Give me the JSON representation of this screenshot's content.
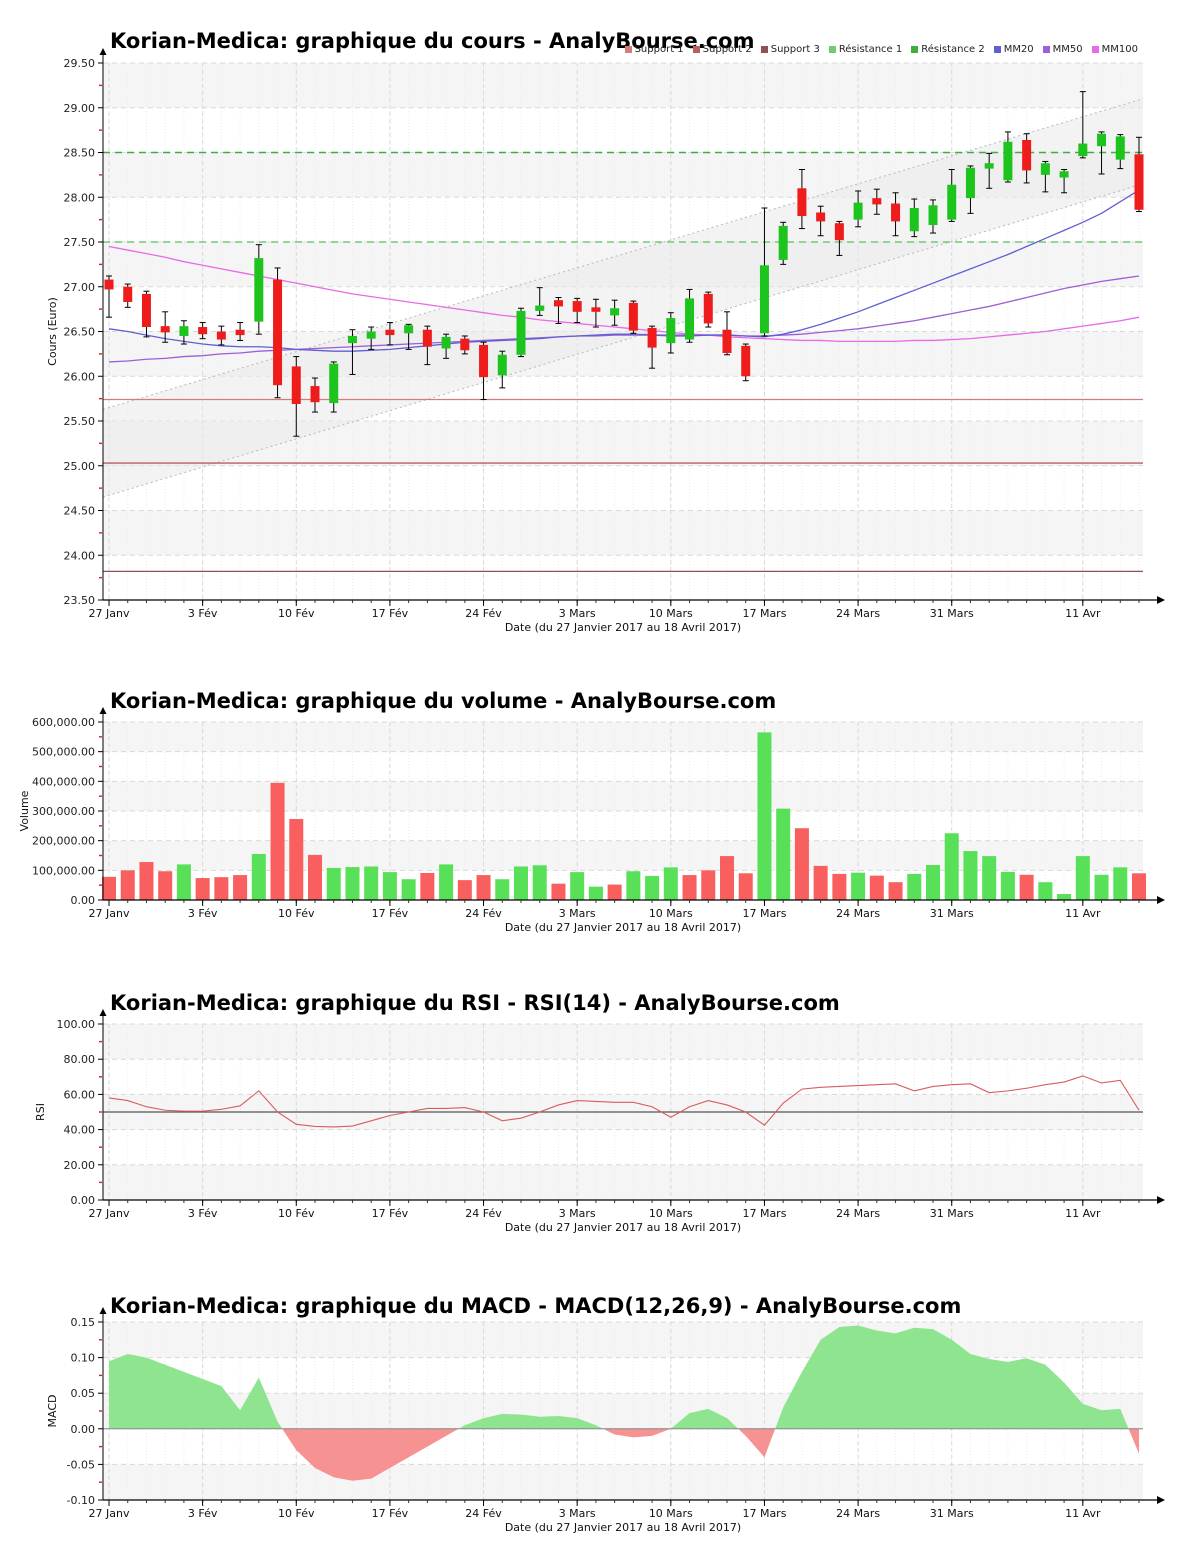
{
  "site": "AnalyBourse.com",
  "x_axis": {
    "title": "Date (du 27 Janvier 2017 au 18 Avril 2017)",
    "week_ticks": [
      {
        "i": 0,
        "label": "27 Janv"
      },
      {
        "i": 5,
        "label": "3 Fév"
      },
      {
        "i": 10,
        "label": "10 Fév"
      },
      {
        "i": 15,
        "label": "17 Fév"
      },
      {
        "i": 20,
        "label": "24 Fév"
      },
      {
        "i": 25,
        "label": "3 Mars"
      },
      {
        "i": 30,
        "label": "10 Mars"
      },
      {
        "i": 35,
        "label": "17 Mars"
      },
      {
        "i": 40,
        "label": "24 Mars"
      },
      {
        "i": 45,
        "label": "31 Mars"
      },
      {
        "i": 52,
        "label": "11 Avr"
      }
    ]
  },
  "dates": [
    "27/01",
    "30/01",
    "31/01",
    "01/02",
    "02/02",
    "03/02",
    "06/02",
    "07/02",
    "08/02",
    "09/02",
    "10/02",
    "13/02",
    "14/02",
    "15/02",
    "16/02",
    "17/02",
    "20/02",
    "21/02",
    "22/02",
    "23/02",
    "24/02",
    "27/02",
    "28/02",
    "01/03",
    "02/03",
    "03/03",
    "06/03",
    "07/03",
    "08/03",
    "09/03",
    "10/03",
    "13/03",
    "14/03",
    "15/03",
    "16/03",
    "17/03",
    "20/03",
    "21/03",
    "22/03",
    "23/03",
    "24/03",
    "27/03",
    "28/03",
    "29/03",
    "30/03",
    "31/03",
    "03/04",
    "04/04",
    "05/04",
    "06/04",
    "07/04",
    "10/04",
    "11/04",
    "12/04",
    "13/04",
    "18/04"
  ],
  "colors": {
    "candle_up": "#1ec41e",
    "candle_down": "#ef1c1c",
    "wick": "#000000",
    "volume_up": "#58e058",
    "volume_down": "#f95f5f",
    "rsi_line": "#d95c5c",
    "macd_pos": "#8fe48f",
    "macd_neg": "#f79292",
    "mm20": "#5f5fd3",
    "mm50": "#9d5fd3",
    "mm100": "#e86ae8",
    "support1": "#d47c7c",
    "support2": "#b95f5f",
    "support3": "#8f5252",
    "resistance1": "#74c974",
    "resistance2": "#3fae3f",
    "band": "#f5f5f5",
    "grid_major": "#d9d9d9",
    "grid_day": "#ececec",
    "minor_tick": "#cc2222",
    "channel_fill": "#e9e9e9",
    "channel_line": "#b8b8b8",
    "baseline": "#555555"
  },
  "chart_data": [
    {
      "type": "candlestick",
      "title": "Korian-Medica: graphique du cours - AnalyBourse.com",
      "xlabel": "Date (du 27 Janvier 2017 au 18 Avril 2017)",
      "ylabel": "Cours (Euro)",
      "ylim": [
        23.5,
        29.5
      ],
      "ytick_step": 0.5,
      "legend": [
        {
          "label": "Support 1",
          "color": "#d47c7c"
        },
        {
          "label": "Support 2",
          "color": "#b95f5f"
        },
        {
          "label": "Support 3",
          "color": "#8f5252"
        },
        {
          "label": "Résistance 1",
          "color": "#74c974"
        },
        {
          "label": "Résistance 2",
          "color": "#3fae3f"
        },
        {
          "label": "MM20",
          "color": "#5f5fd3"
        },
        {
          "label": "MM50",
          "color": "#9d5fd3"
        },
        {
          "label": "MM100",
          "color": "#e86ae8"
        }
      ],
      "open": [
        27.08,
        27.0,
        26.92,
        26.56,
        26.45,
        26.55,
        26.5,
        26.52,
        26.61,
        27.08,
        26.11,
        25.89,
        25.7,
        26.37,
        26.42,
        26.52,
        26.48,
        26.52,
        26.31,
        26.42,
        26.35,
        26.01,
        26.24,
        26.73,
        26.85,
        26.84,
        26.77,
        26.68,
        26.82,
        26.54,
        26.37,
        26.41,
        26.92,
        26.52,
        26.34,
        26.48,
        27.3,
        28.1,
        27.83,
        27.71,
        27.75,
        27.99,
        27.93,
        27.62,
        27.69,
        27.75,
        27.99,
        28.32,
        28.19,
        28.64,
        28.25,
        28.22,
        28.46,
        28.57,
        28.42,
        28.48
      ],
      "high": [
        27.12,
        27.03,
        26.95,
        26.72,
        26.62,
        26.6,
        26.56,
        26.6,
        27.47,
        27.21,
        26.22,
        25.98,
        26.16,
        26.52,
        26.55,
        26.6,
        26.58,
        26.56,
        26.47,
        26.45,
        26.38,
        26.28,
        26.76,
        26.99,
        26.88,
        26.87,
        26.86,
        26.85,
        26.84,
        26.56,
        26.71,
        26.97,
        26.94,
        26.72,
        26.36,
        27.88,
        27.72,
        28.31,
        27.9,
        27.73,
        28.07,
        28.09,
        28.05,
        27.98,
        27.97,
        28.31,
        28.35,
        28.49,
        28.73,
        28.71,
        28.4,
        28.31,
        29.18,
        28.73,
        28.7,
        28.67
      ],
      "low": [
        26.66,
        26.77,
        26.44,
        26.38,
        26.36,
        26.42,
        26.35,
        26.4,
        26.47,
        25.76,
        25.33,
        25.6,
        25.6,
        26.02,
        26.3,
        26.35,
        26.3,
        26.13,
        26.2,
        26.25,
        25.74,
        25.87,
        26.22,
        26.68,
        26.59,
        26.6,
        26.55,
        26.57,
        26.48,
        26.09,
        26.26,
        26.38,
        26.55,
        26.24,
        25.95,
        26.45,
        27.25,
        27.65,
        27.57,
        27.35,
        27.67,
        27.81,
        27.57,
        27.56,
        27.6,
        27.73,
        27.82,
        28.1,
        28.17,
        28.16,
        28.06,
        28.05,
        28.44,
        28.26,
        28.32,
        27.84
      ],
      "close": [
        26.97,
        26.83,
        26.55,
        26.49,
        26.56,
        26.47,
        26.41,
        26.46,
        27.32,
        25.9,
        25.69,
        25.71,
        26.14,
        26.45,
        26.5,
        26.46,
        26.57,
        26.33,
        26.44,
        26.29,
        25.99,
        26.24,
        26.73,
        26.79,
        26.78,
        26.72,
        26.72,
        26.76,
        26.51,
        26.32,
        26.65,
        26.87,
        26.59,
        26.26,
        26.0,
        27.24,
        27.68,
        27.79,
        27.73,
        27.52,
        27.94,
        27.92,
        27.73,
        27.88,
        27.91,
        28.14,
        28.33,
        28.38,
        28.62,
        28.3,
        28.38,
        28.29,
        28.6,
        28.71,
        28.68,
        27.86
      ],
      "levels": {
        "support1": 25.74,
        "support2": 25.03,
        "support3": 23.82,
        "resistance1": 27.5,
        "resistance2": 28.5
      },
      "channel": {
        "lower_start": 24.65,
        "lower_end": 28.15,
        "upper_start": 25.63,
        "upper_end": 29.1
      },
      "mm20": [
        26.53,
        26.5,
        26.46,
        26.42,
        26.39,
        26.36,
        26.34,
        26.33,
        26.33,
        26.32,
        26.3,
        26.29,
        26.28,
        26.28,
        26.29,
        26.3,
        26.32,
        26.34,
        26.36,
        26.38,
        26.39,
        26.4,
        26.41,
        26.42,
        26.44,
        26.45,
        26.46,
        26.47,
        26.47,
        26.46,
        26.45,
        26.45,
        26.46,
        26.46,
        26.45,
        26.44,
        26.47,
        26.52,
        26.58,
        26.65,
        26.72,
        26.8,
        26.88,
        26.96,
        27.04,
        27.12,
        27.2,
        27.28,
        27.36,
        27.45,
        27.54,
        27.63,
        27.72,
        27.82,
        27.95,
        28.08
      ],
      "mm50": [
        26.16,
        26.17,
        26.19,
        26.2,
        26.22,
        26.23,
        26.25,
        26.26,
        26.28,
        26.29,
        26.3,
        26.31,
        26.32,
        26.33,
        26.34,
        26.35,
        26.36,
        26.37,
        26.38,
        26.39,
        26.4,
        26.41,
        26.42,
        26.43,
        26.44,
        26.45,
        26.45,
        26.46,
        26.46,
        26.46,
        26.46,
        26.46,
        26.46,
        26.46,
        26.45,
        26.45,
        26.46,
        26.47,
        26.49,
        26.51,
        26.53,
        26.56,
        26.59,
        26.62,
        26.66,
        26.7,
        26.74,
        26.78,
        26.83,
        26.88,
        26.93,
        26.98,
        27.02,
        27.06,
        27.09,
        27.12
      ],
      "mm100": [
        27.45,
        27.41,
        27.37,
        27.33,
        27.28,
        27.24,
        27.2,
        27.16,
        27.12,
        27.08,
        27.04,
        27.0,
        26.96,
        26.92,
        26.89,
        26.86,
        26.83,
        26.8,
        26.77,
        26.74,
        26.71,
        26.68,
        26.66,
        26.63,
        26.61,
        26.59,
        26.57,
        26.55,
        26.53,
        26.51,
        26.49,
        26.47,
        26.46,
        26.44,
        26.43,
        26.42,
        26.41,
        26.4,
        26.4,
        26.39,
        26.39,
        26.39,
        26.39,
        26.4,
        26.4,
        26.41,
        26.42,
        26.44,
        26.46,
        26.48,
        26.5,
        26.53,
        26.56,
        26.59,
        26.62,
        26.66
      ]
    },
    {
      "type": "bar",
      "title": "Korian-Medica: graphique du volume - AnalyBourse.com",
      "xlabel": "Date (du 27 Janvier 2017 au 18 Avril 2017)",
      "ylabel": "Volume",
      "ylim": [
        0,
        600000
      ],
      "ytick_step": 100000,
      "values": [
        78000,
        100000,
        128000,
        97000,
        120000,
        74000,
        77000,
        84000,
        155000,
        395000,
        273000,
        152000,
        108000,
        111000,
        113000,
        94000,
        70000,
        91000,
        120000,
        67000,
        84000,
        70000,
        113000,
        117000,
        55000,
        94000,
        45000,
        52000,
        97000,
        81000,
        110000,
        84000,
        100000,
        148000,
        90000,
        565000,
        308000,
        242000,
        115000,
        88000,
        92000,
        82000,
        60000,
        88000,
        118000,
        225000,
        165000,
        148000,
        95000,
        85000,
        60000,
        20000,
        148000,
        85000,
        110000,
        90000
      ],
      "directions": [
        "down",
        "down",
        "down",
        "down",
        "up",
        "down",
        "down",
        "down",
        "up",
        "down",
        "down",
        "down",
        "up",
        "up",
        "up",
        "up",
        "up",
        "down",
        "up",
        "down",
        "down",
        "up",
        "up",
        "up",
        "down",
        "up",
        "up",
        "down",
        "up",
        "up",
        "up",
        "down",
        "down",
        "down",
        "down",
        "up",
        "up",
        "down",
        "down",
        "down",
        "up",
        "down",
        "down",
        "up",
        "up",
        "up",
        "up",
        "up",
        "up",
        "down",
        "up",
        "up",
        "up",
        "up",
        "up",
        "down"
      ]
    },
    {
      "type": "line",
      "title": "Korian-Medica: graphique du RSI - RSI(14) - AnalyBourse.com",
      "xlabel": "Date (du 27 Janvier 2017 au 18 Avril 2017)",
      "ylabel": "RSI",
      "ylim": [
        0,
        100
      ],
      "ytick_step": 20,
      "baseline": 50,
      "values": [
        58,
        56.5,
        53,
        51,
        50.5,
        50.5,
        51.5,
        53.5,
        62,
        50,
        43,
        41.8,
        41.5,
        42,
        45,
        48,
        50,
        52,
        52,
        52.5,
        50,
        45,
        46.5,
        50,
        54,
        56.5,
        56,
        55.5,
        55.5,
        53,
        47,
        53,
        56.5,
        54,
        50,
        42.5,
        55,
        63,
        64,
        64.5,
        65,
        65.5,
        66,
        62,
        64.5,
        65.5,
        66,
        61,
        62,
        63.5,
        65.5,
        67,
        70.5,
        66.5,
        68,
        51
      ]
    },
    {
      "type": "area",
      "title": "Korian-Medica: graphique du MACD - MACD(12,26,9) - AnalyBourse.com",
      "xlabel": "Date (du 27 Janvier 2017 au 18 Avril 2017)",
      "ylabel": "MACD",
      "ylim": [
        -0.1,
        0.15
      ],
      "ytick_step": 0.05,
      "values": [
        0.095,
        0.105,
        0.1,
        0.09,
        0.08,
        0.07,
        0.06,
        0.026,
        0.072,
        0.01,
        -0.03,
        -0.055,
        -0.068,
        -0.073,
        -0.07,
        -0.055,
        -0.04,
        -0.025,
        -0.01,
        0.005,
        0.015,
        0.021,
        0.02,
        0.017,
        0.018,
        0.015,
        0.005,
        -0.008,
        -0.012,
        -0.01,
        0.0,
        0.022,
        0.028,
        0.015,
        -0.01,
        -0.04,
        0.03,
        0.08,
        0.125,
        0.143,
        0.145,
        0.138,
        0.134,
        0.142,
        0.14,
        0.125,
        0.105,
        0.098,
        0.094,
        0.099,
        0.09,
        0.065,
        0.035,
        0.026,
        0.028,
        -0.035
      ]
    }
  ]
}
